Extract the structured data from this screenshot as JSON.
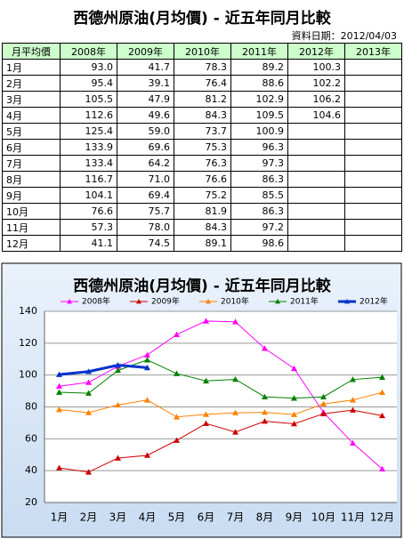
{
  "header": {
    "title": "西德州原油(月均價) - 近五年同月比較",
    "date": "資料日期：2012/04/03"
  },
  "table": {
    "columns": [
      "月平均價",
      "2008年",
      "2009年",
      "2010年",
      "2011年",
      "2012年",
      "2013年"
    ],
    "rows": [
      [
        "1月",
        "93.0",
        "41.7",
        "78.3",
        "89.2",
        "100.3"
      ],
      [
        "2月",
        "95.4",
        "39.1",
        "76.4",
        "88.6",
        "102.2"
      ],
      [
        "3月",
        "105.5",
        "47.9",
        "81.2",
        "102.9",
        "106.2"
      ],
      [
        "4月",
        "112.6",
        "49.6",
        "84.3",
        "109.5",
        "104.6"
      ],
      [
        "5月",
        "125.4",
        "59.0",
        "73.7",
        "100.9"
      ],
      [
        "6月",
        "133.9",
        "69.6",
        "75.3",
        "96.3"
      ],
      [
        "7月",
        "133.4",
        "64.2",
        "76.3",
        "97.3"
      ],
      [
        "8月",
        "116.7",
        "71.0",
        "76.6",
        "86.3"
      ],
      [
        "9月",
        "104.1",
        "69.4",
        "75.2",
        "85.5"
      ],
      [
        "10月",
        "76.6",
        "75.7",
        "81.9",
        "86.3"
      ],
      [
        "11月",
        "57.3",
        "78.0",
        "84.3",
        "97.2"
      ],
      [
        "12月",
        "41.1",
        "74.5",
        "89.1",
        "98.6"
      ]
    ]
  },
  "chart_data": {
    "type": "line",
    "title": "西德州原油(月均價) - 近五年同月比較",
    "categories": [
      "1月",
      "2月",
      "3月",
      "4月",
      "5月",
      "6月",
      "7月",
      "8月",
      "9月",
      "10月",
      "11月",
      "12月"
    ],
    "series": [
      {
        "name": "2008年",
        "color": "#ff00ff",
        "values": [
          93,
          95.4,
          105.5,
          112.6,
          125.4,
          133.9,
          133.4,
          116.7,
          104.1,
          76.6,
          57.3,
          41.1
        ]
      },
      {
        "name": "2009年",
        "color": "#cc0000",
        "values": [
          41.7,
          39.1,
          47.9,
          49.6,
          59,
          69.6,
          64.2,
          71,
          69.4,
          75.7,
          78,
          74.5
        ]
      },
      {
        "name": "2010年",
        "color": "#ff8000",
        "values": [
          78.3,
          76.4,
          81.2,
          84.3,
          73.7,
          75.3,
          76.3,
          76.6,
          75.2,
          81.9,
          84.3,
          89.1
        ]
      },
      {
        "name": "2011年",
        "color": "#008000",
        "values": [
          89.2,
          88.6,
          102.9,
          109.5,
          100.9,
          96.3,
          97.3,
          86.3,
          85.5,
          86.3,
          97.2,
          98.6
        ]
      },
      {
        "name": "2012年",
        "color": "#0033cc",
        "values": [
          100.3,
          102.2,
          106.2,
          104.6,
          null,
          null,
          null,
          null,
          null,
          null,
          null,
          null
        ]
      }
    ],
    "ylim": [
      20,
      140
    ],
    "yticks": [
      20,
      40,
      60,
      80,
      100,
      120,
      140
    ],
    "grid": true
  }
}
